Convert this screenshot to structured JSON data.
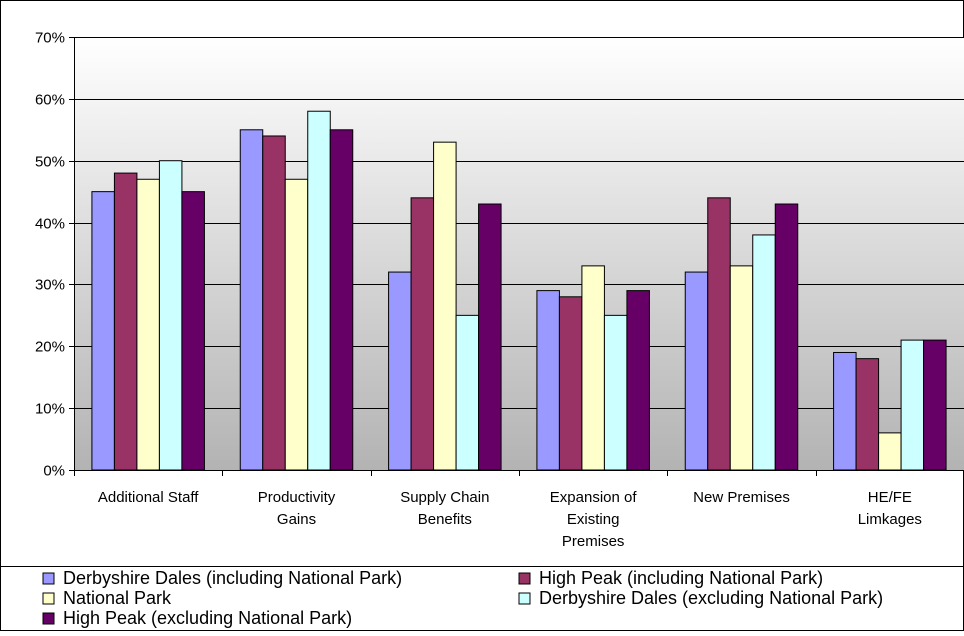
{
  "chart_data": {
    "type": "bar",
    "categories": [
      [
        "Additional Staff"
      ],
      [
        "Productivity",
        "Gains"
      ],
      [
        "Supply Chain",
        "Benefits"
      ],
      [
        "Expansion of",
        "Existing",
        "Premises"
      ],
      [
        "New Premises"
      ],
      [
        "HE/FE",
        "Limkages"
      ]
    ],
    "series": [
      {
        "name": "Derbyshire Dales (including National Park)",
        "color": "#9999ff",
        "values": [
          45,
          55,
          32,
          29,
          32,
          19
        ]
      },
      {
        "name": "High Peak (including National Park)",
        "color": "#993366",
        "values": [
          48,
          54,
          44,
          28,
          44,
          18
        ]
      },
      {
        "name": "National Park",
        "color": "#ffffcc",
        "values": [
          47,
          47,
          53,
          33,
          33,
          6
        ]
      },
      {
        "name": "Derbyshire Dales (excluding National Park)",
        "color": "#ccffff",
        "values": [
          50,
          58,
          25,
          25,
          38,
          21
        ]
      },
      {
        "name": "High Peak (excluding National Park)",
        "color": "#660066",
        "values": [
          45,
          55,
          43,
          29,
          43,
          21
        ]
      }
    ],
    "ylim": [
      0,
      70
    ],
    "yticks": [
      0,
      10,
      20,
      30,
      40,
      50,
      60,
      70
    ],
    "ytick_suffix": "%",
    "grid": true,
    "legend_position": "bottom",
    "plot_background": "gradient gray-to-white"
  }
}
